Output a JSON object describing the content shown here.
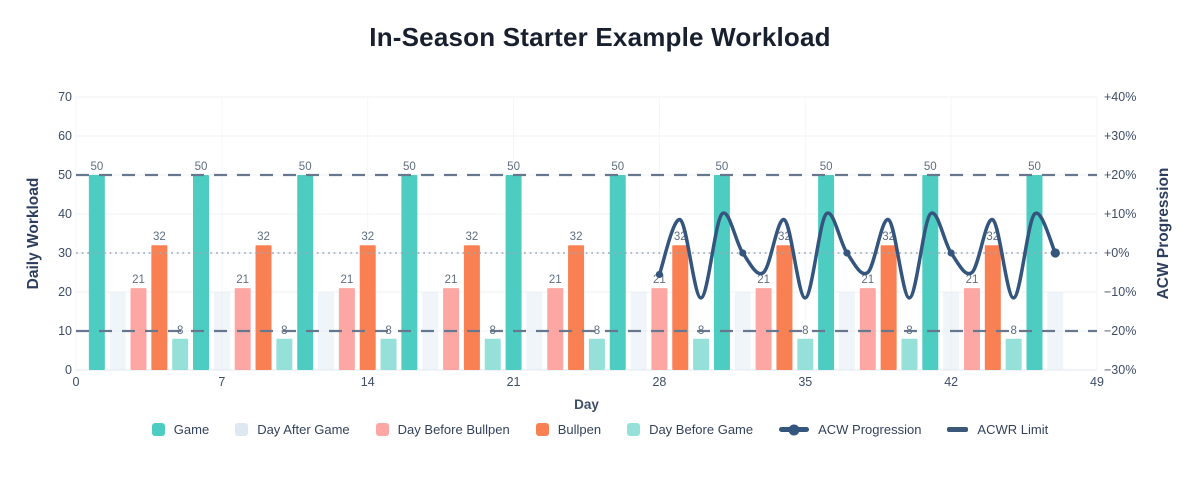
{
  "chart_data": {
    "type": "bar+line",
    "title": "In-Season Starter Example Workload",
    "xlabel": "Day",
    "ylabel_left": "Daily Workload",
    "ylabel_right": "ACW Progression",
    "x_range": [
      0,
      49
    ],
    "x_ticks": [
      0,
      7,
      14,
      21,
      28,
      35,
      42,
      49
    ],
    "y_left": {
      "range": [
        0,
        70
      ],
      "ticks": [
        0,
        10,
        20,
        30,
        40,
        50,
        60,
        70
      ]
    },
    "y_right_ticks": [
      {
        "pct": 40,
        "label": "+40%"
      },
      {
        "pct": 30,
        "label": "+30%"
      },
      {
        "pct": 20,
        "label": "+20%"
      },
      {
        "pct": 10,
        "label": "+10%"
      },
      {
        "pct": 0,
        "label": "+0%"
      },
      {
        "pct": -10,
        "label": "−10%"
      },
      {
        "pct": -20,
        "label": "−20%"
      },
      {
        "pct": -30,
        "label": "−30%"
      }
    ],
    "bar_series": [
      {
        "name": "Game",
        "color": "#4DCDC2",
        "opacity": 1,
        "value": 50,
        "show_labels": true,
        "days": [
          1,
          6,
          11,
          16,
          21,
          26,
          31,
          36,
          41,
          46
        ]
      },
      {
        "name": "Day After Game",
        "color": "#DDE8F2",
        "opacity": 0.45,
        "value": 20,
        "show_labels": false,
        "days": [
          2,
          7,
          12,
          17,
          22,
          27,
          32,
          37,
          42,
          47
        ]
      },
      {
        "name": "Day Before Bullpen",
        "color": "#FCA7A4",
        "opacity": 1,
        "value": 21,
        "show_labels": true,
        "days": [
          3,
          8,
          13,
          18,
          23,
          28,
          33,
          38,
          43
        ]
      },
      {
        "name": "Bullpen",
        "color": "#F88052",
        "opacity": 1,
        "value": 32,
        "show_labels": true,
        "days": [
          4,
          9,
          14,
          19,
          24,
          29,
          34,
          39,
          44
        ]
      },
      {
        "name": "Day Before Game",
        "color": "#96E0DA",
        "opacity": 1,
        "value": 8,
        "show_labels": true,
        "days": [
          5,
          10,
          15,
          20,
          25,
          30,
          35,
          40,
          45
        ]
      }
    ],
    "line_series": {
      "name": "ACW Progression",
      "color": "#34557D",
      "points_day_pct": [
        [
          28,
          -5.5
        ],
        [
          29,
          8.5
        ],
        [
          30,
          -11.5
        ],
        [
          31,
          10
        ],
        [
          32,
          0
        ],
        [
          33,
          -5
        ],
        [
          34,
          8.5
        ],
        [
          35,
          -11.5
        ],
        [
          36,
          10
        ],
        [
          37,
          0
        ],
        [
          38,
          -5
        ],
        [
          39,
          8.5
        ],
        [
          40,
          -11.5
        ],
        [
          41,
          10
        ],
        [
          42,
          0
        ],
        [
          43,
          -5
        ],
        [
          44,
          8.5
        ],
        [
          45,
          -11.5
        ],
        [
          46,
          10
        ],
        [
          47,
          0
        ]
      ],
      "marker_days": [
        28,
        32,
        37,
        42
      ],
      "end_marker_day": 47
    },
    "acwr_limit": {
      "name": "ACWR Limit",
      "pct_values": [
        20,
        -20
      ],
      "color": "#67788E",
      "style": "dashed"
    },
    "baseline": {
      "pct": 0,
      "color": "#9AA6B5",
      "style": "dotted"
    },
    "grid": {
      "horizontal": true,
      "vertical": true,
      "color": "#EDF1F5"
    },
    "legend_position": "bottom"
  },
  "legend": {
    "items": [
      {
        "label": "Game",
        "marker": "square",
        "color": "#4DCDC2"
      },
      {
        "label": "Day After Game",
        "marker": "square",
        "color": "#DDE8F2"
      },
      {
        "label": "Day Before Bullpen",
        "marker": "square",
        "color": "#FCA7A4"
      },
      {
        "label": "Bullpen",
        "marker": "square",
        "color": "#F88052"
      },
      {
        "label": "Day Before Game",
        "marker": "square",
        "color": "#96E0DA"
      },
      {
        "label": "ACW Progression",
        "marker": "line-dot",
        "color": "#34557D"
      },
      {
        "label": "ACWR Limit",
        "marker": "dash",
        "color": "#3C5878"
      }
    ]
  },
  "colors": {
    "title": "#18202F",
    "axis_title": "#2D3E5F",
    "tick": "#3D4D66",
    "bar_label": "#5F6E80",
    "bottom_axis": "#E2E8F0"
  }
}
